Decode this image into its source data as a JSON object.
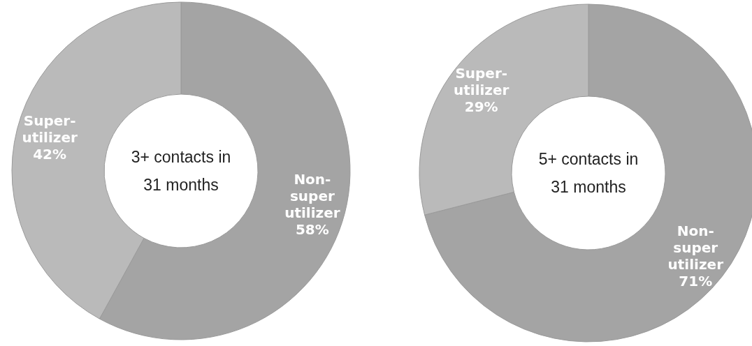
{
  "chart_data": [
    {
      "type": "donut",
      "categories": [
        "Non-super utilizer",
        "Super-utilizer"
      ],
      "values": [
        58,
        42
      ],
      "colors": [
        "#a4a4a4",
        "#bababa"
      ],
      "annotations": [
        "3+ contacts in 31 months"
      ],
      "value_labels": [
        "58%",
        "42%"
      ]
    },
    {
      "type": "donut",
      "categories": [
        "Non-super utilizer",
        "Super-utilizer"
      ],
      "values": [
        71,
        29
      ],
      "colors": [
        "#a4a4a4",
        "#bababa"
      ],
      "annotations": [
        "5+ contacts in 31 months"
      ],
      "value_labels": [
        "71%",
        "29%"
      ]
    }
  ]
}
